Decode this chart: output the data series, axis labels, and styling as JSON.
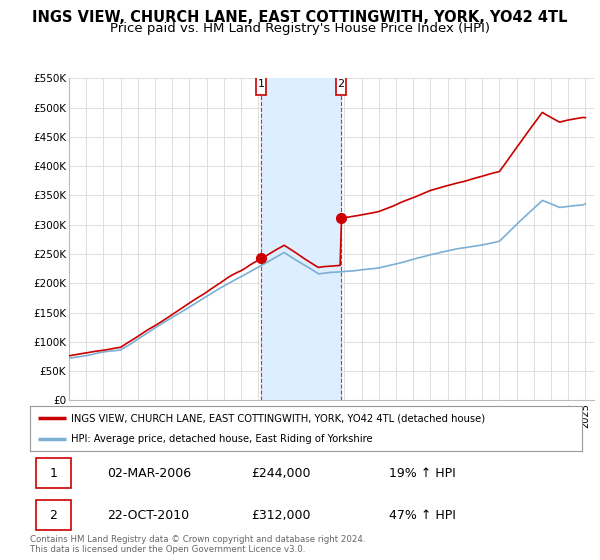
{
  "title": "INGS VIEW, CHURCH LANE, EAST COTTINGWITH, YORK, YO42 4TL",
  "subtitle": "Price paid vs. HM Land Registry's House Price Index (HPI)",
  "ylim": [
    0,
    550000
  ],
  "yticks": [
    0,
    50000,
    100000,
    150000,
    200000,
    250000,
    300000,
    350000,
    400000,
    450000,
    500000,
    550000
  ],
  "ytick_labels": [
    "£0",
    "£50K",
    "£100K",
    "£150K",
    "£200K",
    "£250K",
    "£300K",
    "£350K",
    "£400K",
    "£450K",
    "£500K",
    "£550K"
  ],
  "xlim_start": 1995.0,
  "xlim_end": 2025.5,
  "sale1_x": 2006.17,
  "sale1_y": 244000,
  "sale1_label": "1",
  "sale2_x": 2010.81,
  "sale2_y": 312000,
  "sale2_label": "2",
  "red_line_color": "#cc0000",
  "blue_line_color": "#7bafd4",
  "shade_color": "#ddeeff",
  "legend_label_red": "INGS VIEW, CHURCH LANE, EAST COTTINGWITH, YORK, YO42 4TL (detached house)",
  "legend_label_blue": "HPI: Average price, detached house, East Riding of Yorkshire",
  "table_row1": [
    "1",
    "02-MAR-2006",
    "£244,000",
    "19% ↑ HPI"
  ],
  "table_row2": [
    "2",
    "22-OCT-2010",
    "£312,000",
    "47% ↑ HPI"
  ],
  "footnote": "Contains HM Land Registry data © Crown copyright and database right 2024.\nThis data is licensed under the Open Government Licence v3.0.",
  "bg_color": "#ffffff",
  "grid_color": "#dddddd",
  "title_fontsize": 10.5,
  "subtitle_fontsize": 9.5
}
